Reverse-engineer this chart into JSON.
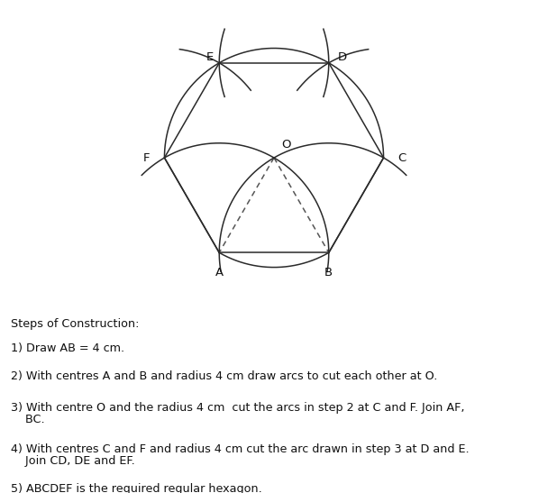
{
  "bg_color": "#ffffff",
  "line_color": "#2a2a2a",
  "dashed_color": "#555555",
  "text_color": "#111111",
  "side": 1.0,
  "steps_line1": "Steps of Construction:",
  "steps_line2": "1) Draw AB = 4 cm.",
  "steps_line3": "2) With centres A and B and radius 4 cm draw arcs to cut each other at O.",
  "steps_line4a": "3) With centre O and the radius 4 cm  cut the arcs in step 2 at C and F. Join AF,",
  "steps_line4b": "    BC.",
  "steps_line5a": "4) With centres C and F and radius 4 cm cut the arc drawn in step 3 at D and E.",
  "steps_line5b": "    Join CD, DE and EF.",
  "steps_line6": "5) ABCDEF is the required regular hexagon."
}
